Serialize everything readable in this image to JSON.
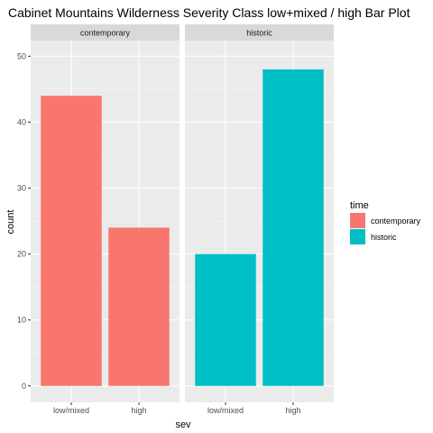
{
  "chart_data": {
    "type": "bar",
    "title": "Cabinet Mountains Wilderness Severity Class low+mixed / high Bar Plot",
    "xlabel": "sev",
    "ylabel": "count",
    "ylim": [
      0,
      50
    ],
    "yticks": [
      0,
      10,
      20,
      30,
      40,
      50
    ],
    "categories": [
      "low/mixed",
      "high"
    ],
    "facets": [
      {
        "label": "contemporary",
        "fill_key": "contemporary",
        "values": [
          44,
          24
        ]
      },
      {
        "label": "historic",
        "fill_key": "historic",
        "values": [
          20,
          48
        ]
      }
    ],
    "legend": {
      "title": "time",
      "position": "right",
      "entries": [
        {
          "key": "contemporary",
          "label": "contemporary",
          "color": "#F8766D"
        },
        {
          "key": "historic",
          "label": "historic",
          "color": "#00BFC4"
        }
      ]
    },
    "grid": true
  },
  "colors": {
    "panel_bg": "#EBEBEB",
    "grid_major": "#FFFFFF",
    "strip_bg": "#D9D9D9"
  }
}
